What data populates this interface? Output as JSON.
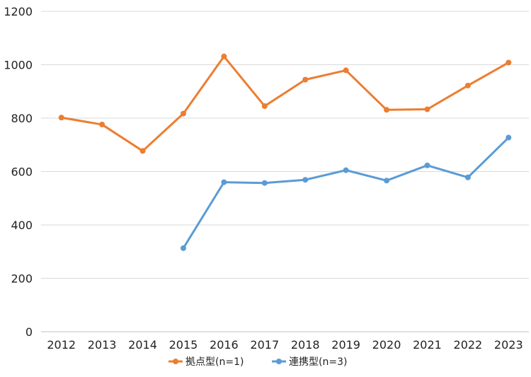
{
  "chart_data": {
    "type": "line",
    "categories": [
      "2012",
      "2013",
      "2014",
      "2015",
      "2016",
      "2017",
      "2018",
      "2019",
      "2020",
      "2021",
      "2022",
      "2023"
    ],
    "series": [
      {
        "name": "拠点型(n=1)",
        "color": "#ed7d31",
        "values": [
          802,
          776,
          677,
          817,
          1031,
          845,
          944,
          979,
          831,
          833,
          922,
          1008
        ]
      },
      {
        "name": "連携型(n=3)",
        "color": "#5b9bd5",
        "values": [
          null,
          null,
          null,
          313,
          560,
          557,
          569,
          605,
          566,
          623,
          578,
          727
        ]
      }
    ],
    "y_ticks": [
      "0",
      "200",
      "400",
      "600",
      "800",
      "1000",
      "1200"
    ],
    "ylim": [
      0,
      1200
    ],
    "grid": true,
    "legend_position": "bottom",
    "title": "",
    "xlabel": "",
    "ylabel": ""
  }
}
